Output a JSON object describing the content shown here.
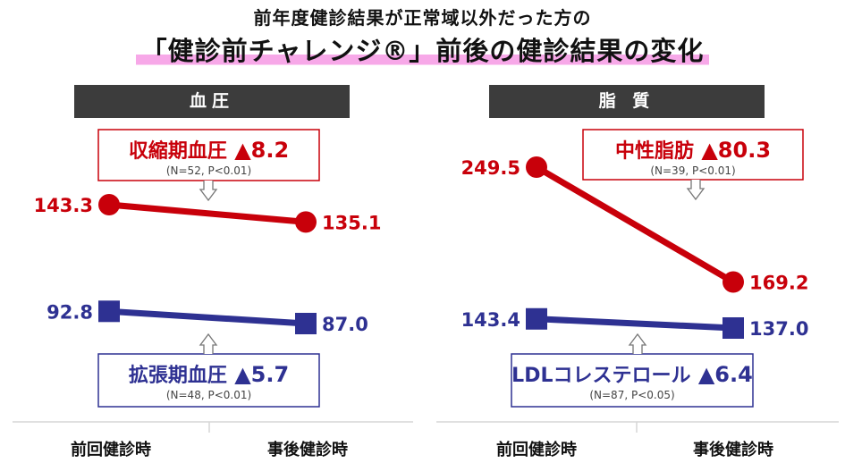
{
  "title_line1": "前年度健診結果が正常域以外だった方の",
  "title_line2": "「健診前チャレンジ®」前後の健診結果の変化",
  "colors": {
    "red": "#c8000a",
    "blue": "#2e3192",
    "header_bg": "#3c3c3c",
    "highlight": "#f7a8e8"
  },
  "chart_data": [
    {
      "type": "line",
      "panel": "血圧",
      "categories": [
        "前回健診時",
        "事後健診時"
      ],
      "series": [
        {
          "name": "収縮期血圧",
          "values": [
            143.3,
            135.1
          ],
          "labels": [
            "143.3",
            "135.1"
          ],
          "color": "#c8000a",
          "marker": "circle",
          "callout": {
            "title": "収縮期血圧",
            "change": "▲8.2",
            "note": "(N=52, P<0.01)"
          }
        },
        {
          "name": "拡張期血圧",
          "values": [
            92.8,
            87.0
          ],
          "labels": [
            "92.8",
            "87.0"
          ],
          "color": "#2e3192",
          "marker": "square",
          "callout": {
            "title": "拡張期血圧",
            "change": "▲5.7",
            "note": "(N=48, P<0.01)"
          }
        }
      ]
    },
    {
      "type": "line",
      "panel": "脂 質",
      "categories": [
        "前回健診時",
        "事後健診時"
      ],
      "series": [
        {
          "name": "中性脂肪",
          "values": [
            249.5,
            169.2
          ],
          "labels": [
            "249.5",
            "169.2"
          ],
          "color": "#c8000a",
          "marker": "circle",
          "callout": {
            "title": "中性脂肪",
            "change": "▲80.3",
            "note": "(N=39, P<0.01)"
          }
        },
        {
          "name": "LDLコレステロール",
          "values": [
            143.4,
            137.0
          ],
          "labels": [
            "143.4",
            "137.0"
          ],
          "color": "#2e3192",
          "marker": "square",
          "callout": {
            "title": "LDLコレステロール",
            "change": "▲6.4",
            "note": "(N=87, P<0.05)"
          }
        }
      ]
    }
  ]
}
